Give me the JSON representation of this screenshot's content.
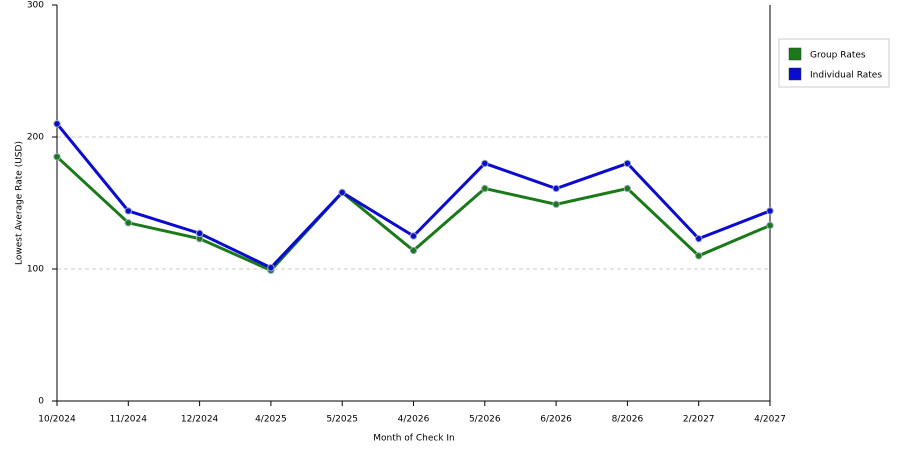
{
  "chart_data": {
    "type": "line",
    "x_label": "Month of Check In",
    "y_label": "Lowest Average Rate (USD)",
    "categories": [
      "10/2024",
      "11/2024",
      "12/2024",
      "4/2025",
      "5/2025",
      "4/2026",
      "5/2026",
      "6/2026",
      "8/2026",
      "2/2027",
      "4/2027"
    ],
    "series": [
      {
        "name": "Group Rates",
        "color": "#1a7a1a",
        "values": [
          185,
          135,
          123,
          99,
          158,
          114,
          161,
          149,
          161,
          110,
          133
        ]
      },
      {
        "name": "Individual Rates",
        "color": "#0a0ad0",
        "values": [
          210,
          144,
          127,
          101,
          158,
          125,
          180,
          161,
          180,
          123,
          144
        ]
      }
    ],
    "ylim": [
      0,
      300
    ],
    "yticks": [
      0,
      100,
      200,
      300
    ],
    "grid": true,
    "legend": "right"
  }
}
